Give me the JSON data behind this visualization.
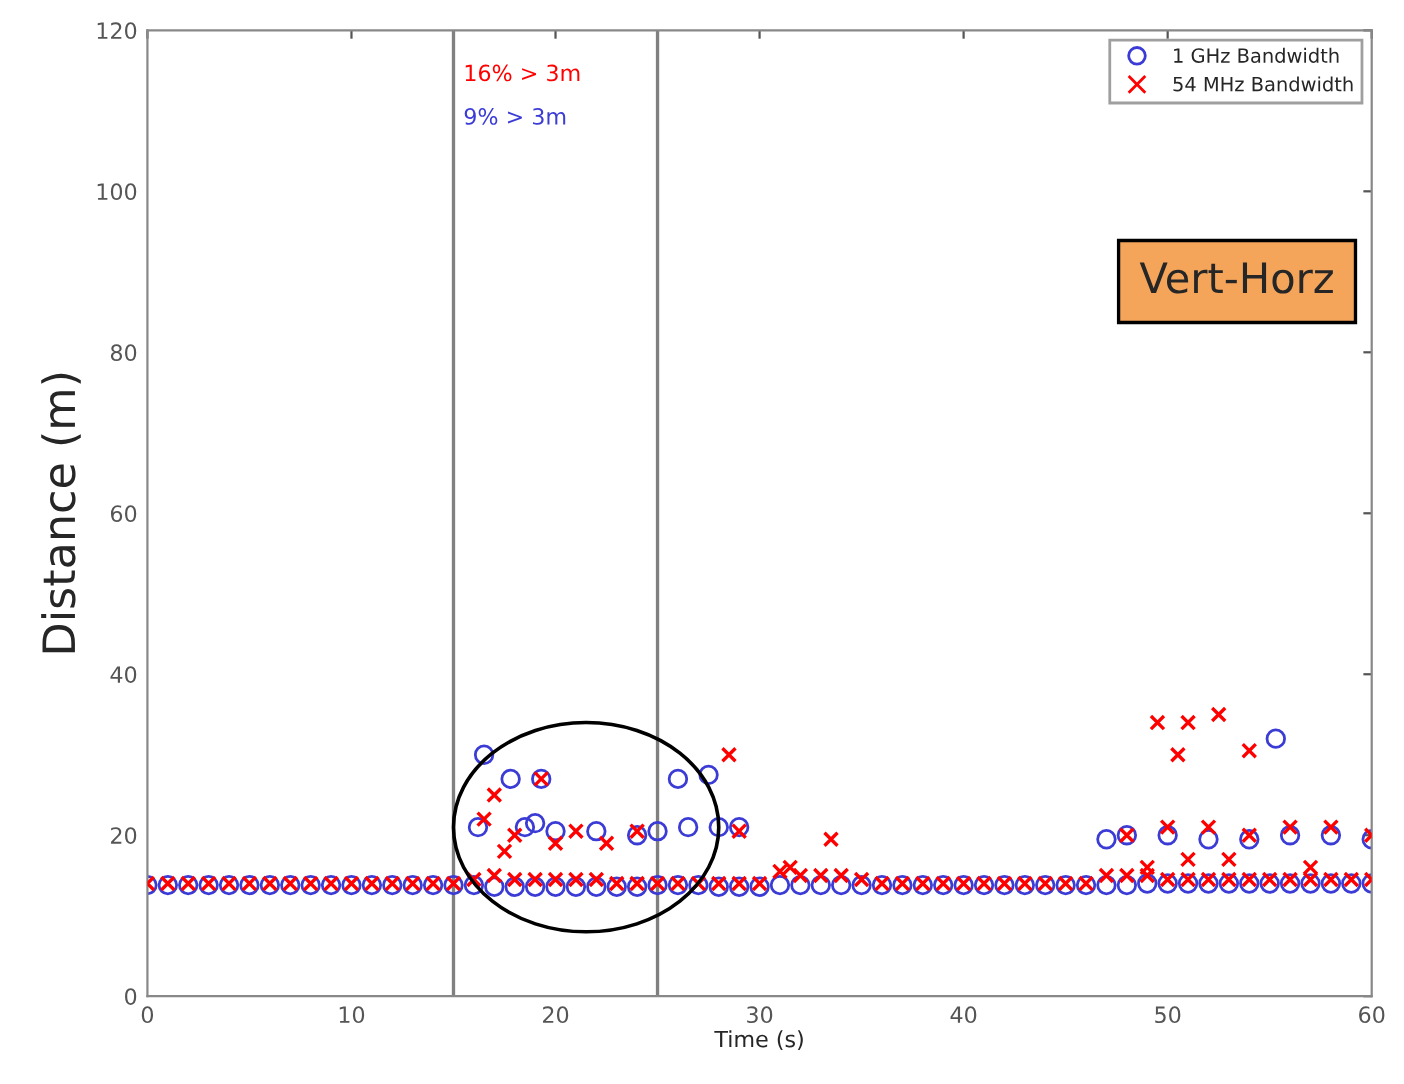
{
  "chart_data": {
    "type": "scatter",
    "xlabel": "Time (s)",
    "ylabel": "Distance (m)",
    "xlim": [
      0,
      60
    ],
    "ylim": [
      0,
      120
    ],
    "xticks": [
      0,
      10,
      20,
      30,
      40,
      50,
      60
    ],
    "yticks": [
      0,
      20,
      40,
      60,
      80,
      100,
      120
    ],
    "grid": false,
    "legend": "top right",
    "ref_lines": [
      {
        "axis": "x",
        "value": 15,
        "color": "#808080"
      },
      {
        "axis": "x",
        "value": 25,
        "color": "#808080"
      }
    ],
    "annotations": [
      "16% > 3m",
      "9% > 3m",
      "Vert-Horz"
    ],
    "series": [
      {
        "name": "1 GHz Bandwidth",
        "color": "#3b3bd6",
        "marker": "circle",
        "x": [
          0,
          1,
          2,
          3,
          4,
          5,
          6,
          7,
          8,
          9,
          10,
          11,
          12,
          13,
          14,
          15,
          16,
          17,
          18,
          19,
          20,
          21,
          22,
          23,
          24,
          25,
          26,
          27,
          28,
          29,
          30,
          31,
          32,
          33,
          34,
          35,
          36,
          37,
          38,
          39,
          40,
          41,
          42,
          43,
          44,
          45,
          46,
          47,
          48,
          49,
          50,
          51,
          52,
          53,
          54,
          55,
          56,
          57,
          58,
          59,
          60,
          16.5,
          17.8,
          19.3,
          16.2,
          18.5,
          19,
          20,
          22,
          24,
          25,
          26,
          26.5,
          27.5,
          28,
          29,
          55.3,
          47,
          48,
          50,
          52,
          54,
          56,
          58,
          60
        ],
        "values": [
          13.8,
          13.8,
          13.8,
          13.8,
          13.8,
          13.8,
          13.8,
          13.8,
          13.8,
          13.8,
          13.8,
          13.8,
          13.8,
          13.8,
          13.8,
          13.8,
          13.8,
          13.6,
          13.6,
          13.6,
          13.6,
          13.6,
          13.6,
          13.6,
          13.6,
          13.8,
          13.8,
          13.8,
          13.6,
          13.6,
          13.6,
          13.8,
          13.8,
          13.8,
          13.8,
          13.8,
          13.8,
          13.8,
          13.8,
          13.8,
          13.8,
          13.8,
          13.8,
          13.8,
          13.8,
          13.8,
          13.8,
          13.8,
          13.8,
          14,
          14,
          14,
          14,
          14,
          14,
          14,
          14,
          14,
          14,
          14,
          14,
          30,
          27,
          27,
          21,
          21,
          21.5,
          20.5,
          20.5,
          20,
          20.5,
          27,
          21,
          27.5,
          21,
          21,
          32,
          19.5,
          20,
          20,
          19.5,
          19.5,
          20,
          20,
          19.5
        ]
      },
      {
        "name": "54 MHz Bandwidth",
        "color": "#ff0000",
        "marker": "cross",
        "x": [
          0,
          1,
          2,
          3,
          4,
          5,
          6,
          7,
          8,
          9,
          10,
          11,
          12,
          13,
          14,
          15,
          16,
          17,
          18,
          19,
          20,
          21,
          22,
          23,
          24,
          25,
          26,
          27,
          28,
          29,
          30,
          31,
          32,
          33,
          34,
          35,
          36,
          37,
          38,
          39,
          40,
          41,
          42,
          43,
          44,
          45,
          46,
          47,
          48,
          49,
          50,
          51,
          52,
          53,
          54,
          55,
          56,
          57,
          58,
          59,
          60,
          16.5,
          17,
          17.5,
          18,
          19.3,
          20,
          21,
          22.5,
          24,
          28.5,
          29,
          31.5,
          33.5,
          49.5,
          51,
          52.5,
          50.5,
          54,
          48,
          50,
          52,
          54,
          56,
          58,
          60,
          49,
          51,
          53,
          57
        ],
        "values": [
          14,
          14,
          14,
          14,
          14,
          14,
          14,
          14,
          14,
          14,
          14,
          14,
          14,
          14,
          14,
          14,
          14.5,
          15,
          14.5,
          14.5,
          14.5,
          14.5,
          14.5,
          14,
          14,
          14,
          14,
          14,
          14,
          14,
          14,
          15.5,
          15,
          15,
          15,
          14.5,
          14,
          14,
          14,
          14,
          14,
          14,
          14,
          14,
          14,
          14,
          14,
          15,
          15,
          15,
          14.5,
          14.5,
          14.5,
          14.5,
          14.5,
          14.5,
          14.5,
          14.5,
          14.5,
          14.5,
          14.5,
          22,
          25,
          18,
          20,
          27,
          19,
          20.5,
          19,
          20.5,
          30,
          20.5,
          16,
          19.5,
          34,
          34,
          35,
          30,
          30.5,
          20,
          21,
          21,
          20,
          21,
          21,
          20,
          16,
          17,
          17,
          16
        ]
      }
    ]
  }
}
